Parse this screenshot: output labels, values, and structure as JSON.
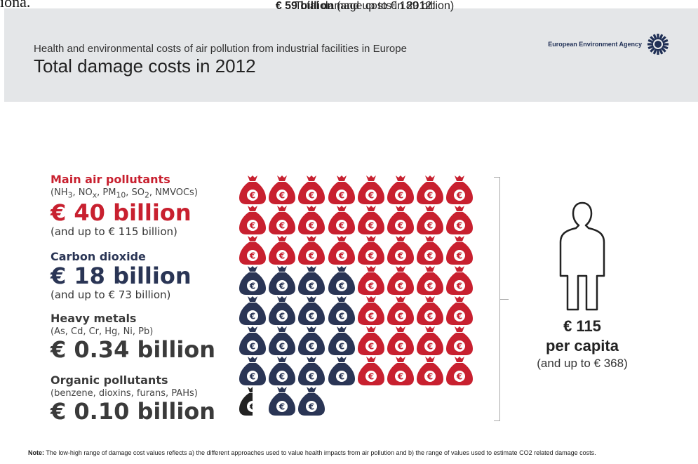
{
  "page_top_fragment": "iona.",
  "header": {
    "subtitle": "Health and environmental costs of air pollution from industrial facilities in Europe",
    "title": "Total damage costs in 2012",
    "agency": "European Environment Agency"
  },
  "summary": {
    "line1": "Total damage costs in 2012:",
    "amount": "€ 59 billion",
    "range": "(and up to € 189 billion)"
  },
  "categories": [
    {
      "label": "Main air pollutants",
      "detail": "(NH3, NOx, PM10, SO2, NMVOCs)",
      "amount": "€ 40 billion",
      "range": "(and up to € 115 billion)",
      "color": "#c8202f"
    },
    {
      "label": "Carbon dioxide",
      "amount": "€ 18 billion",
      "range": "(and up to € 73 billion)",
      "color": "#2a3555"
    },
    {
      "label": "Heavy metals",
      "detail": "(As, Cd, Cr, Hg, Ni, Pb)",
      "amount": "€ 0.34 billion",
      "color": "#3a3a3a"
    },
    {
      "label": "Organic pollutants",
      "detail": "(benzene, dioxins, furans, PAHs)",
      "amount": "€ 0.10 billion",
      "color": "#3a3a3a"
    }
  ],
  "per_capita": {
    "amount": "€ 115",
    "label": "per capita",
    "range": "(and up to € 368)"
  },
  "note": {
    "label": "Note:",
    "text": "The low-high range of damage cost values reflects a) the different approaches used to value health impacts from air pollution and b) the range of values used to estimate CO2 related damage costs."
  },
  "bag_symbol": "€",
  "colors": {
    "red": "#c8202f",
    "navy": "#2a3555",
    "black": "#222222",
    "header_bg": "#e4e6e8"
  }
}
